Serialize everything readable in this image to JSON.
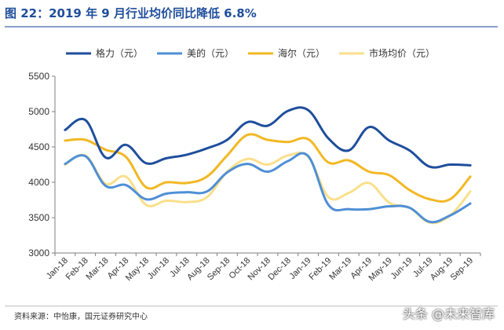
{
  "header": {
    "title": "图 22：2019 年 9 月行业均价同比降低 6.8%"
  },
  "footer": {
    "source": "资料来源：中怡康，国元证券研究中心",
    "watermark": "头条 @未来智库"
  },
  "chart_data": {
    "type": "line",
    "title": "图 22：2019 年 9 月行业均价同比降低 6.8%",
    "xlabel": "",
    "ylabel": "",
    "ylim": [
      3000,
      5500
    ],
    "yticks": [
      3000,
      3500,
      4000,
      4500,
      5000,
      5500
    ],
    "grid": false,
    "legend_position": "top",
    "categories": [
      "Jan-18",
      "Feb-18",
      "Mar-18",
      "Apr-18",
      "May-18",
      "Jun-18",
      "Jul-18",
      "Aug-18",
      "Sep-18",
      "Oct-18",
      "Nov-18",
      "Dec-18",
      "Jan-19",
      "Feb-19",
      "Mar-19",
      "Apr-19",
      "May-19",
      "Jun-19",
      "Jul-19",
      "Aug-19",
      "Sep-19"
    ],
    "series": [
      {
        "name": "格力（元）",
        "color": "#1f4e9c",
        "values": [
          4740,
          4880,
          4350,
          4530,
          4270,
          4340,
          4390,
          4480,
          4600,
          4850,
          4800,
          5010,
          5020,
          4620,
          4450,
          4780,
          4590,
          4450,
          4220,
          4250,
          4240
        ]
      },
      {
        "name": "美的（元）",
        "color": "#4f8fd6",
        "values": [
          4260,
          4370,
          3950,
          3960,
          3760,
          3840,
          3860,
          3870,
          4140,
          4260,
          4150,
          4300,
          4370,
          3680,
          3620,
          3620,
          3660,
          3640,
          3440,
          3530,
          3700
        ]
      },
      {
        "name": "海尔（元）",
        "color": "#f2b824",
        "values": [
          4590,
          4600,
          4460,
          4360,
          3930,
          4000,
          3990,
          4080,
          4380,
          4670,
          4600,
          4570,
          4610,
          4280,
          4310,
          4150,
          4100,
          3890,
          3760,
          3760,
          4080
        ]
      },
      {
        "name": "市场均价（元）",
        "color": "#fadf8a",
        "values": [
          4250,
          4380,
          3980,
          4080,
          3680,
          3740,
          3720,
          3790,
          4150,
          4330,
          4250,
          4380,
          4360,
          3790,
          3850,
          3990,
          3710,
          3640,
          3430,
          3530,
          3870
        ]
      }
    ]
  }
}
